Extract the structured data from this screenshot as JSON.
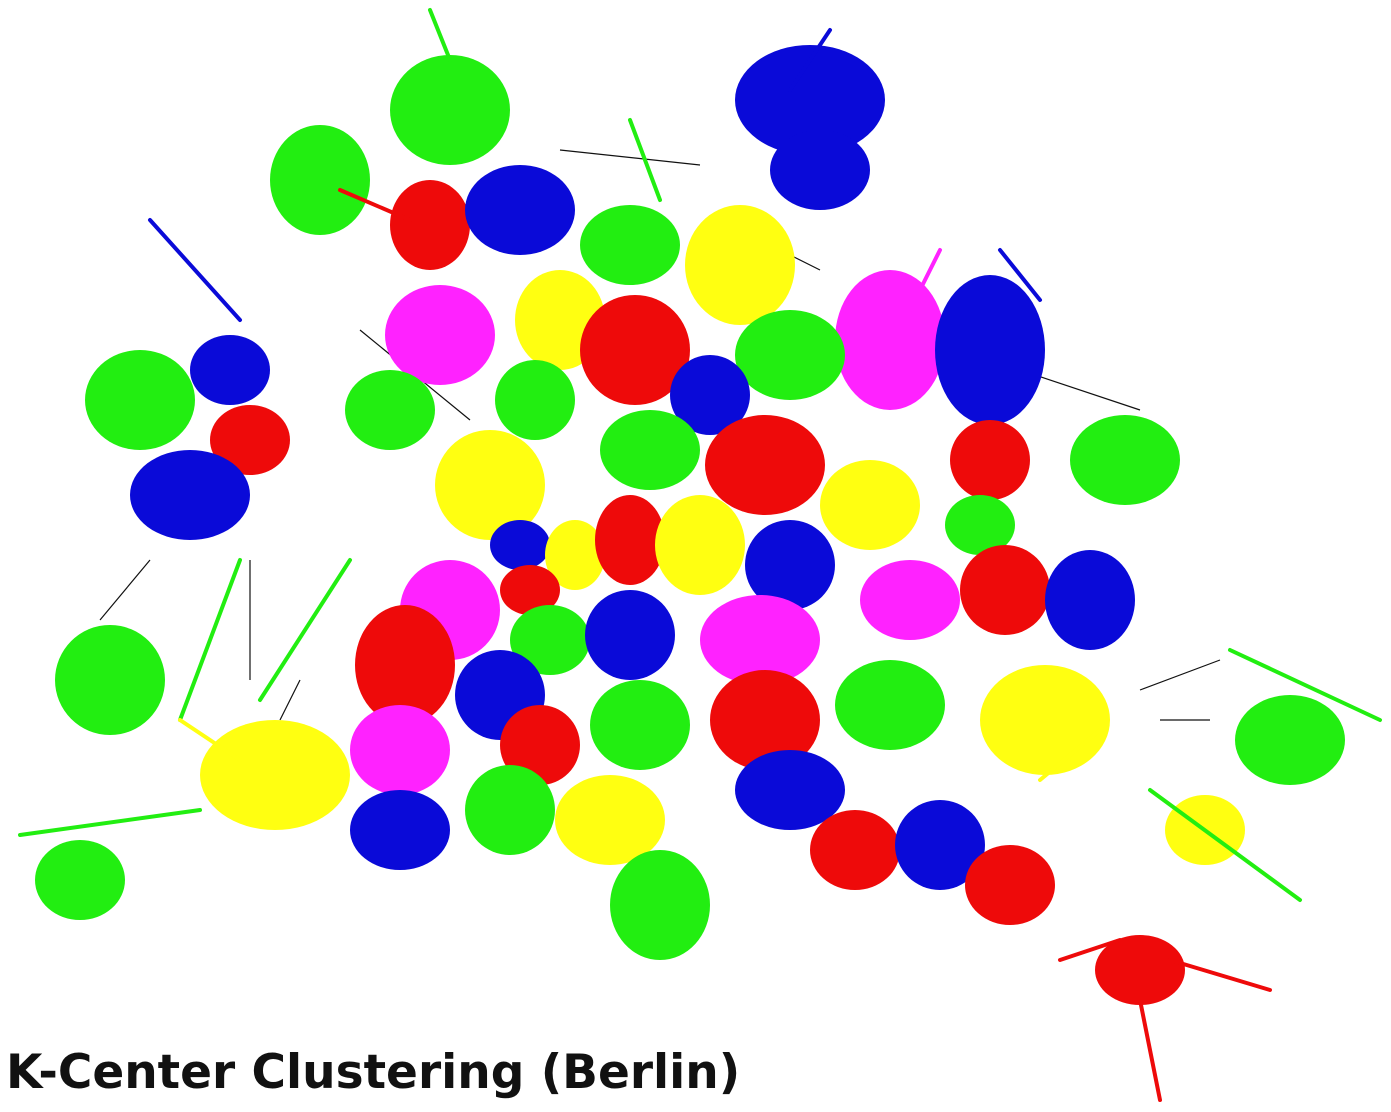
{
  "title": "K-Center Clustering (Berlin)"
}
